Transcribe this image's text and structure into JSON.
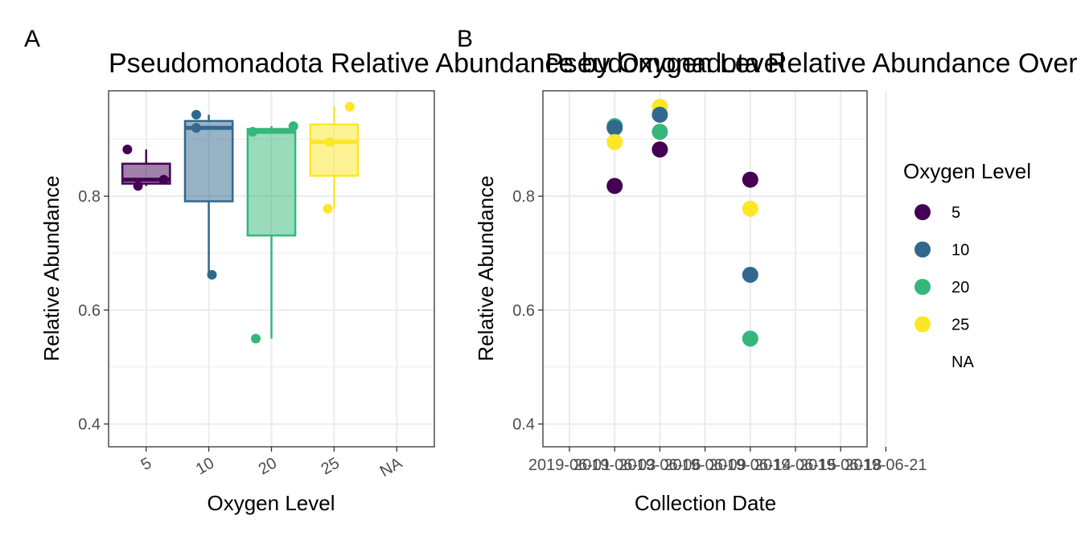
{
  "chart_data": [
    {
      "panel": "A",
      "type": "box",
      "title": "Pseudomonadota Relative Abundance by Oxygen Level",
      "xlabel": "Oxygen Level",
      "ylabel": "Relative Abundance",
      "categories": [
        "5",
        "10",
        "20",
        "25",
        "NA"
      ],
      "ylim": [
        0.36,
        0.985
      ],
      "yticks": [
        0.4,
        0.6,
        0.8
      ],
      "ytick_labels": [
        "0.4",
        "0.6",
        "0.8"
      ],
      "grid": true,
      "boxes": [
        {
          "category": "5",
          "color": "#440154",
          "whisker_low": 0.818,
          "q1": 0.822,
          "median": 0.829,
          "q3": 0.857,
          "whisker_high": 0.882
        },
        {
          "category": "10",
          "color": "#31688e",
          "whisker_low": 0.662,
          "q1": 0.791,
          "median": 0.92,
          "q3": 0.932,
          "whisker_high": 0.943
        },
        {
          "category": "20",
          "color": "#35b779",
          "whisker_low": 0.55,
          "q1": 0.731,
          "median": 0.913,
          "q3": 0.918,
          "whisker_high": 0.923
        },
        {
          "category": "25",
          "color": "#fde725",
          "whisker_low": 0.778,
          "q1": 0.836,
          "median": 0.895,
          "q3": 0.926,
          "whisker_high": 0.957
        }
      ],
      "points": [
        {
          "category": "5",
          "value": 0.882,
          "jitter": -0.3
        },
        {
          "category": "5",
          "value": 0.818,
          "jitter": -0.13
        },
        {
          "category": "5",
          "value": 0.829,
          "jitter": 0.28
        },
        {
          "category": "10",
          "value": 0.943,
          "jitter": -0.2
        },
        {
          "category": "10",
          "value": 0.92,
          "jitter": -0.2
        },
        {
          "category": "10",
          "value": 0.662,
          "jitter": 0.05
        },
        {
          "category": "20",
          "value": 0.913,
          "jitter": -0.3
        },
        {
          "category": "20",
          "value": 0.55,
          "jitter": -0.25
        },
        {
          "category": "20",
          "value": 0.923,
          "jitter": 0.35
        },
        {
          "category": "25",
          "value": 0.957,
          "jitter": 0.25
        },
        {
          "category": "25",
          "value": 0.895,
          "jitter": -0.07
        },
        {
          "category": "25",
          "value": 0.778,
          "jitter": -0.1
        }
      ]
    },
    {
      "panel": "B",
      "type": "scatter",
      "title": "Pseudomonadota Relative Abundance Over Time",
      "xlabel": "Collection Date",
      "ylabel": "Relative Abundance",
      "x_categories": [
        "2019-06-01",
        "2019-06-03",
        "2019-06-06",
        "2019-06-09",
        "2019-06-14",
        "2019-06-15",
        "2019-06-18",
        "2019-06-21"
      ],
      "ylim": [
        0.36,
        0.985
      ],
      "yticks": [
        0.4,
        0.6,
        0.8
      ],
      "ytick_labels": [
        "0.4",
        "0.6",
        "0.8"
      ],
      "grid": true,
      "points": [
        {
          "x": "2019-06-03",
          "y": 0.818,
          "group": "5"
        },
        {
          "x": "2019-06-03",
          "y": 0.923,
          "group": "20"
        },
        {
          "x": "2019-06-03",
          "y": 0.92,
          "group": "10"
        },
        {
          "x": "2019-06-03",
          "y": 0.895,
          "group": "25"
        },
        {
          "x": "2019-06-06",
          "y": 0.957,
          "group": "25"
        },
        {
          "x": "2019-06-06",
          "y": 0.943,
          "group": "10"
        },
        {
          "x": "2019-06-06",
          "y": 0.913,
          "group": "20"
        },
        {
          "x": "2019-06-06",
          "y": 0.882,
          "group": "5"
        },
        {
          "x": "2019-06-14",
          "y": 0.829,
          "group": "5"
        },
        {
          "x": "2019-06-14",
          "y": 0.778,
          "group": "25"
        },
        {
          "x": "2019-06-14",
          "y": 0.662,
          "group": "10"
        },
        {
          "x": "2019-06-14",
          "y": 0.55,
          "group": "20"
        }
      ],
      "legend": {
        "title": "Oxygen Level",
        "position": "right",
        "entries": [
          {
            "label": "5",
            "color": "#440154"
          },
          {
            "label": "10",
            "color": "#31688e"
          },
          {
            "label": "20",
            "color": "#35b779"
          },
          {
            "label": "25",
            "color": "#fde725"
          },
          {
            "label": "NA",
            "color": ""
          }
        ]
      }
    }
  ]
}
